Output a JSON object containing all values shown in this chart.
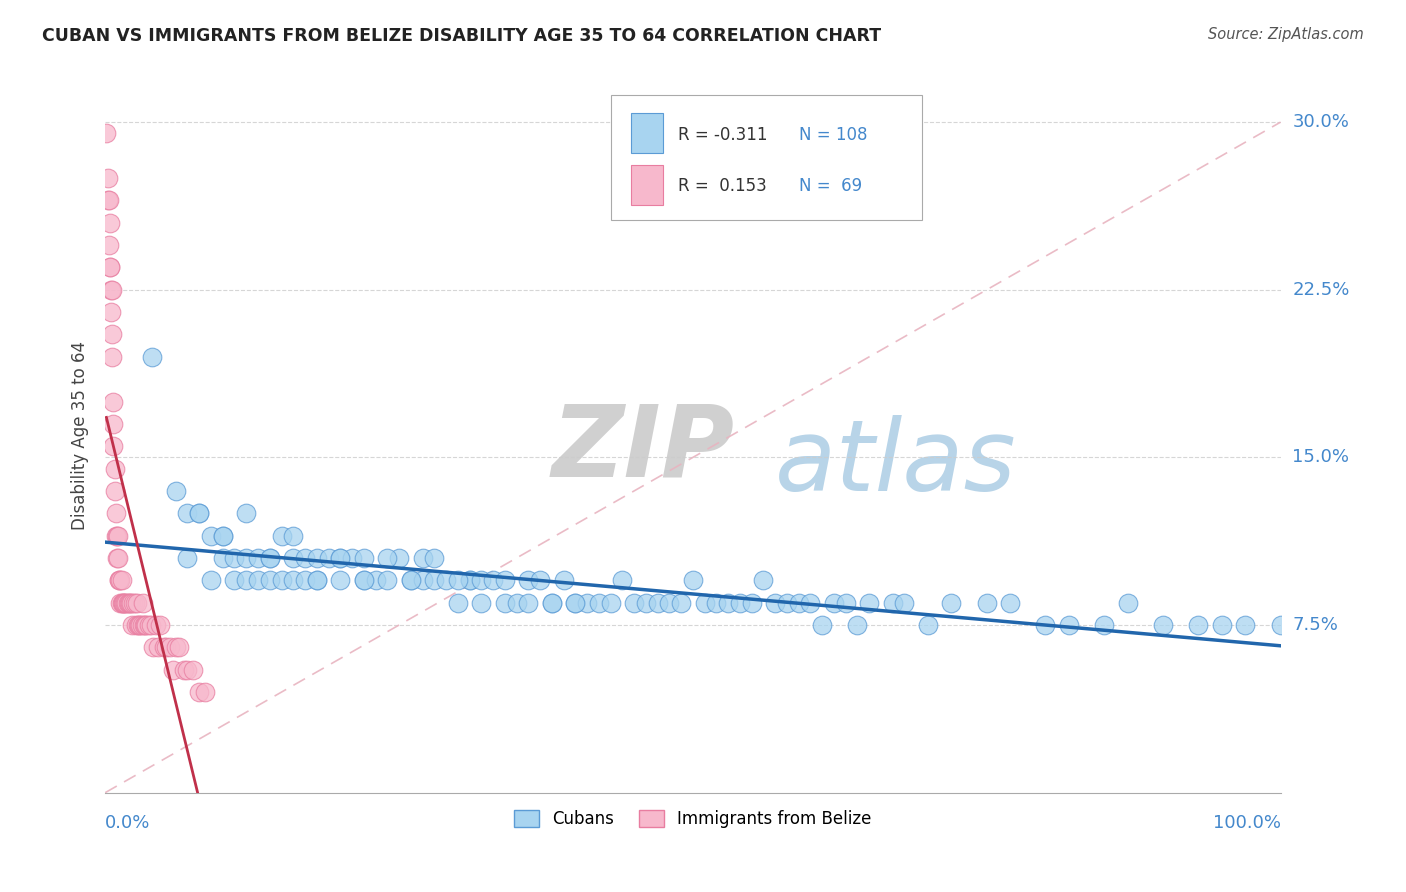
{
  "title": "CUBAN VS IMMIGRANTS FROM BELIZE DISABILITY AGE 35 TO 64 CORRELATION CHART",
  "source": "Source: ZipAtlas.com",
  "ylabel": "Disability Age 35 to 64",
  "xlim": [
    0.0,
    1.0
  ],
  "ylim": [
    0.0,
    0.32
  ],
  "xticks": [
    0.0,
    0.25,
    0.5,
    0.75,
    1.0
  ],
  "ytick_labels": [
    "7.5%",
    "15.0%",
    "22.5%",
    "30.0%"
  ],
  "yticks": [
    0.075,
    0.15,
    0.225,
    0.3
  ],
  "r_cuban": -0.311,
  "n_cuban": 108,
  "r_belize": 0.153,
  "n_belize": 69,
  "blue_color": "#a8d4f0",
  "pink_color": "#f7b8cc",
  "blue_edge_color": "#5b9bd5",
  "pink_edge_color": "#e87da0",
  "blue_line_color": "#2166ac",
  "pink_line_color": "#c0304a",
  "ref_line_color": "#e8b4c0",
  "legend_label_cuban": "Cubans",
  "legend_label_belize": "Immigrants from Belize",
  "watermark_zip": "ZIP",
  "watermark_atlas": "atlas",
  "cubans_x": [
    0.04,
    0.06,
    0.07,
    0.07,
    0.08,
    0.09,
    0.09,
    0.1,
    0.1,
    0.11,
    0.11,
    0.12,
    0.12,
    0.13,
    0.13,
    0.14,
    0.14,
    0.15,
    0.15,
    0.16,
    0.16,
    0.17,
    0.17,
    0.18,
    0.18,
    0.19,
    0.2,
    0.2,
    0.21,
    0.22,
    0.22,
    0.23,
    0.24,
    0.25,
    0.26,
    0.27,
    0.27,
    0.28,
    0.29,
    0.3,
    0.31,
    0.31,
    0.32,
    0.33,
    0.34,
    0.35,
    0.36,
    0.37,
    0.38,
    0.39,
    0.4,
    0.41,
    0.42,
    0.43,
    0.44,
    0.45,
    0.46,
    0.47,
    0.48,
    0.49,
    0.5,
    0.51,
    0.52,
    0.53,
    0.54,
    0.55,
    0.56,
    0.57,
    0.58,
    0.59,
    0.6,
    0.61,
    0.62,
    0.63,
    0.64,
    0.65,
    0.67,
    0.68,
    0.7,
    0.72,
    0.75,
    0.77,
    0.8,
    0.82,
    0.85,
    0.87,
    0.9,
    0.93,
    0.95,
    0.97,
    1.0,
    0.08,
    0.1,
    0.12,
    0.14,
    0.16,
    0.18,
    0.2,
    0.22,
    0.24,
    0.26,
    0.28,
    0.3,
    0.32,
    0.34,
    0.36,
    0.38,
    0.4
  ],
  "cubans_y": [
    0.195,
    0.135,
    0.125,
    0.105,
    0.125,
    0.115,
    0.095,
    0.105,
    0.115,
    0.105,
    0.095,
    0.105,
    0.095,
    0.105,
    0.095,
    0.105,
    0.095,
    0.115,
    0.095,
    0.105,
    0.095,
    0.105,
    0.095,
    0.105,
    0.095,
    0.105,
    0.095,
    0.105,
    0.105,
    0.105,
    0.095,
    0.095,
    0.095,
    0.105,
    0.095,
    0.095,
    0.105,
    0.095,
    0.095,
    0.085,
    0.095,
    0.095,
    0.095,
    0.095,
    0.085,
    0.085,
    0.095,
    0.095,
    0.085,
    0.095,
    0.085,
    0.085,
    0.085,
    0.085,
    0.095,
    0.085,
    0.085,
    0.085,
    0.085,
    0.085,
    0.095,
    0.085,
    0.085,
    0.085,
    0.085,
    0.085,
    0.095,
    0.085,
    0.085,
    0.085,
    0.085,
    0.075,
    0.085,
    0.085,
    0.075,
    0.085,
    0.085,
    0.085,
    0.075,
    0.085,
    0.085,
    0.085,
    0.075,
    0.075,
    0.075,
    0.085,
    0.075,
    0.075,
    0.075,
    0.075,
    0.075,
    0.125,
    0.115,
    0.125,
    0.105,
    0.115,
    0.095,
    0.105,
    0.095,
    0.105,
    0.095,
    0.105,
    0.095,
    0.085,
    0.095,
    0.085,
    0.085,
    0.085
  ],
  "belize_x": [
    0.001,
    0.002,
    0.002,
    0.003,
    0.003,
    0.004,
    0.004,
    0.004,
    0.005,
    0.005,
    0.006,
    0.006,
    0.006,
    0.007,
    0.007,
    0.007,
    0.008,
    0.008,
    0.009,
    0.009,
    0.01,
    0.01,
    0.011,
    0.011,
    0.012,
    0.012,
    0.013,
    0.013,
    0.014,
    0.014,
    0.015,
    0.015,
    0.016,
    0.017,
    0.018,
    0.019,
    0.02,
    0.021,
    0.022,
    0.023,
    0.024,
    0.025,
    0.026,
    0.027,
    0.028,
    0.029,
    0.03,
    0.031,
    0.032,
    0.033,
    0.034,
    0.035,
    0.037,
    0.039,
    0.041,
    0.043,
    0.045,
    0.047,
    0.05,
    0.052,
    0.055,
    0.058,
    0.06,
    0.063,
    0.067,
    0.07,
    0.075,
    0.08,
    0.085
  ],
  "belize_y": [
    0.295,
    0.275,
    0.265,
    0.265,
    0.245,
    0.235,
    0.255,
    0.235,
    0.215,
    0.225,
    0.225,
    0.205,
    0.195,
    0.175,
    0.165,
    0.155,
    0.145,
    0.135,
    0.125,
    0.115,
    0.115,
    0.105,
    0.115,
    0.105,
    0.095,
    0.095,
    0.095,
    0.085,
    0.085,
    0.095,
    0.085,
    0.085,
    0.085,
    0.085,
    0.085,
    0.085,
    0.085,
    0.085,
    0.085,
    0.075,
    0.085,
    0.085,
    0.075,
    0.085,
    0.075,
    0.075,
    0.075,
    0.075,
    0.085,
    0.075,
    0.075,
    0.075,
    0.075,
    0.075,
    0.065,
    0.075,
    0.065,
    0.075,
    0.065,
    0.065,
    0.065,
    0.055,
    0.065,
    0.065,
    0.055,
    0.055,
    0.055,
    0.045,
    0.045
  ]
}
